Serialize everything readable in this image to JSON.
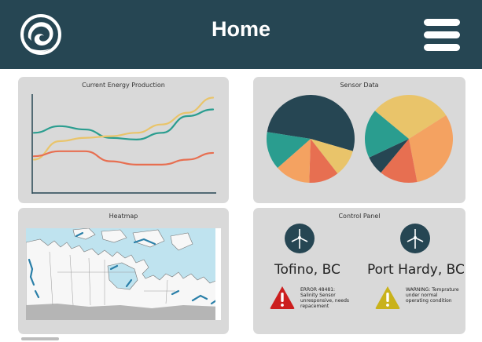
{
  "header": {
    "title": "Home",
    "logo_icon": "wave-swirl-icon",
    "menu_icon": "hamburger-menu-icon",
    "background": "#264653"
  },
  "cards": {
    "energy": {
      "title": "Current Energy Production",
      "chart_data": {
        "type": "line",
        "x": [
          0,
          1,
          2,
          3,
          4,
          5,
          6,
          7
        ],
        "series": [
          {
            "color": "#2a9d8f",
            "values": [
              70,
              78,
              74,
              64,
              62,
              70,
              90,
              98
            ]
          },
          {
            "color": "#e9c46a",
            "values": [
              38,
              60,
              64,
              66,
              70,
              80,
              94,
              112
            ]
          },
          {
            "color": "#e76f51",
            "values": [
              42,
              48,
              48,
              36,
              32,
              32,
              38,
              46
            ]
          }
        ],
        "ylim": [
          0,
          120
        ],
        "xlabel": "",
        "ylabel": "",
        "grid": false
      }
    },
    "sensor": {
      "title": "Sensor Data",
      "chart_data": [
        {
          "type": "pie",
          "values": [
            52,
            10,
            11,
            13,
            14
          ],
          "colors": [
            "#264653",
            "#e9c46a",
            "#e76f51",
            "#f4a261",
            "#2a9d8f"
          ]
        },
        {
          "type": "pie",
          "values": [
            30,
            31,
            14,
            7,
            18
          ],
          "colors": [
            "#e9c46a",
            "#f4a261",
            "#e76f51",
            "#264653",
            "#2a9d8f"
          ]
        }
      ]
    },
    "heatmap": {
      "title": "Heatmap"
    },
    "control": {
      "title": "Control Panel",
      "sites": [
        {
          "name": "Tofino, BC",
          "icon": "wind-turbine-icon",
          "status_icon": "error-warning-icon",
          "status_color": "#cc1f1f",
          "message": "ERROR 48481: Salinity Sensor unresponsive, needs repacement"
        },
        {
          "name": "Port Hardy, BC",
          "icon": "wind-turbine-icon",
          "status_icon": "caution-warning-icon",
          "status_color": "#c9b21b",
          "message": "WARNING: Temprature under normal operating condition"
        }
      ]
    }
  },
  "colors": {
    "card_bg": "#d9d9d9",
    "teal": "#2a9d8f",
    "dark": "#264653",
    "yellow": "#e9c46a",
    "orange": "#f4a261",
    "red_orange": "#e76f51"
  }
}
